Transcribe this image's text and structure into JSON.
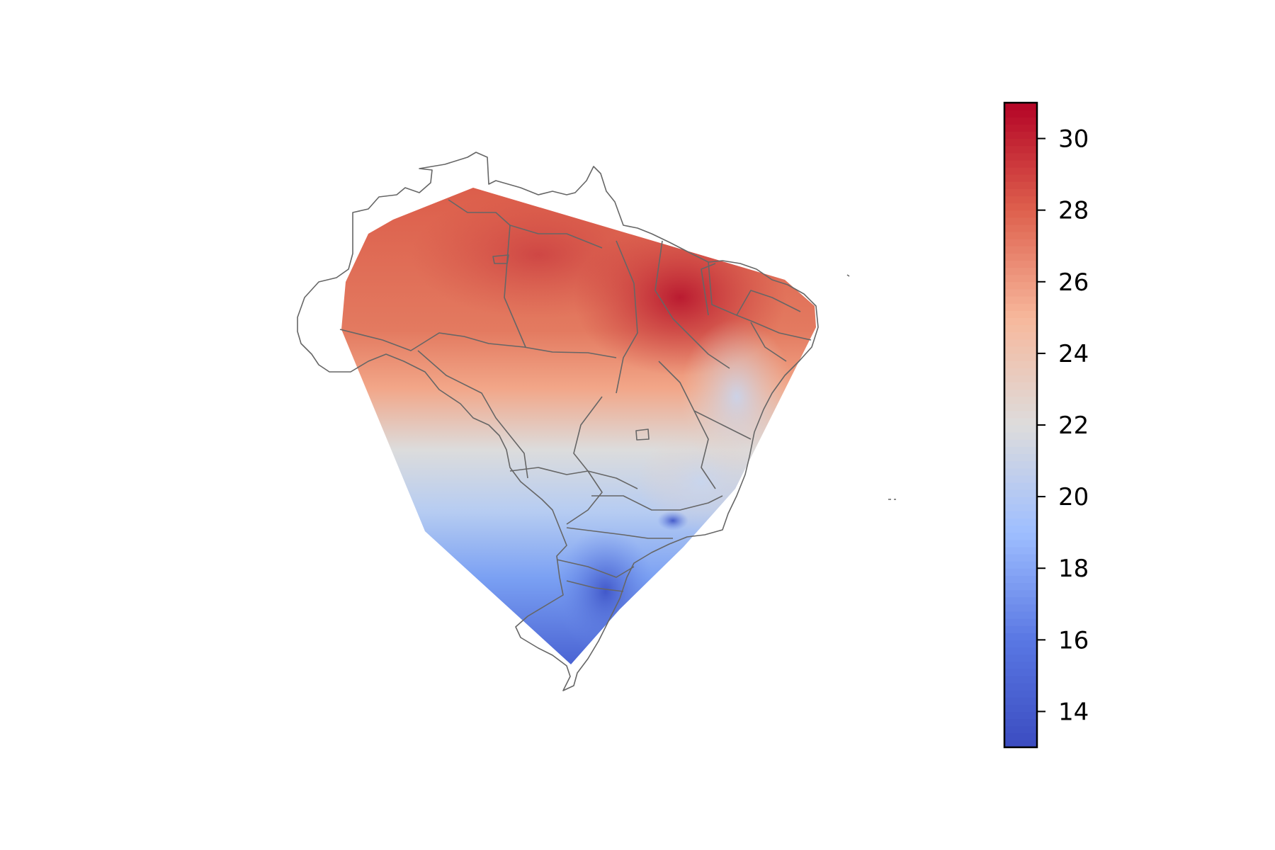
{
  "map": {
    "type": "filled-contour",
    "region": "Brazil",
    "colormap": "coolwarm",
    "boundary_color": "#666666"
  },
  "colorbar": {
    "min": 13,
    "max": 31,
    "ticks": [
      14,
      16,
      18,
      20,
      22,
      24,
      26,
      28,
      30
    ],
    "tick_labels": [
      "14",
      "16",
      "18",
      "20",
      "22",
      "24",
      "26",
      "28",
      "30"
    ],
    "stops": [
      {
        "value": 13,
        "color": "#3b4cc0"
      },
      {
        "value": 16,
        "color": "#5977e3"
      },
      {
        "value": 19,
        "color": "#9ebeff"
      },
      {
        "value": 22,
        "color": "#dddcdc"
      },
      {
        "value": 25,
        "color": "#f7b89c"
      },
      {
        "value": 28,
        "color": "#de604d"
      },
      {
        "value": 31,
        "color": "#b40426"
      }
    ]
  }
}
